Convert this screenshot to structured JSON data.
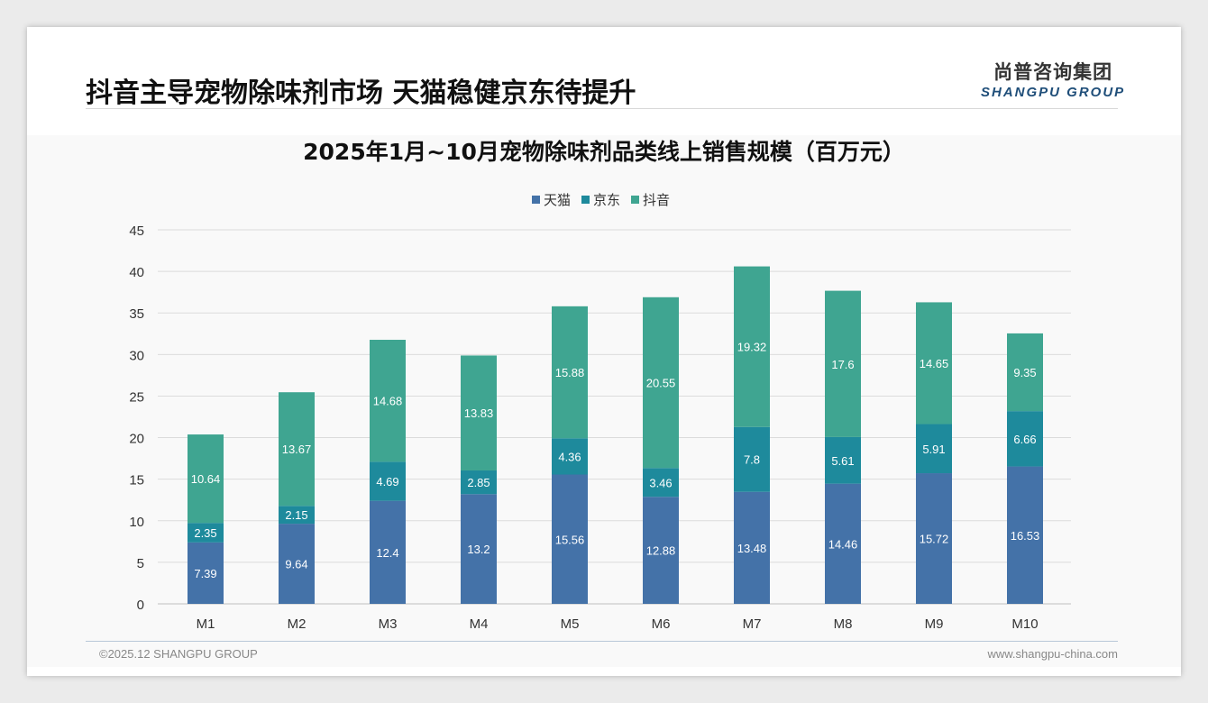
{
  "header": {
    "title": "抖音主导宠物除味剂市场 天猫稳健京东待提升",
    "logo_cn": "尚普咨询集团",
    "logo_en": "SHANGPU GROUP"
  },
  "footer": {
    "copyright": "©2025.12 SHANGPU GROUP",
    "website": "www.shangpu-china.com"
  },
  "chart_data": {
    "type": "bar",
    "stacked": true,
    "title": "2025年1月~10月宠物除味剂品类线上销售规模（百万元）",
    "categories": [
      "M1",
      "M2",
      "M3",
      "M4",
      "M5",
      "M6",
      "M7",
      "M8",
      "M9",
      "M10"
    ],
    "series": [
      {
        "name": "天猫",
        "color": "#4472a8",
        "values": [
          7.39,
          9.64,
          12.4,
          13.2,
          15.56,
          12.88,
          13.48,
          14.46,
          15.72,
          16.53
        ]
      },
      {
        "name": "京东",
        "color": "#1e8a9c",
        "values": [
          2.35,
          2.15,
          4.69,
          2.85,
          4.36,
          3.46,
          7.8,
          5.61,
          5.91,
          6.66
        ]
      },
      {
        "name": "抖音",
        "color": "#3fa591",
        "values": [
          10.64,
          13.67,
          14.68,
          13.83,
          15.88,
          20.55,
          19.32,
          17.6,
          14.65,
          9.35
        ]
      }
    ],
    "ylim": [
      0,
      45
    ],
    "yticks": [
      0,
      5,
      10,
      15,
      20,
      25,
      30,
      35,
      40,
      45
    ],
    "grid": true,
    "legend": "top-center",
    "xlabel": "",
    "ylabel": ""
  }
}
